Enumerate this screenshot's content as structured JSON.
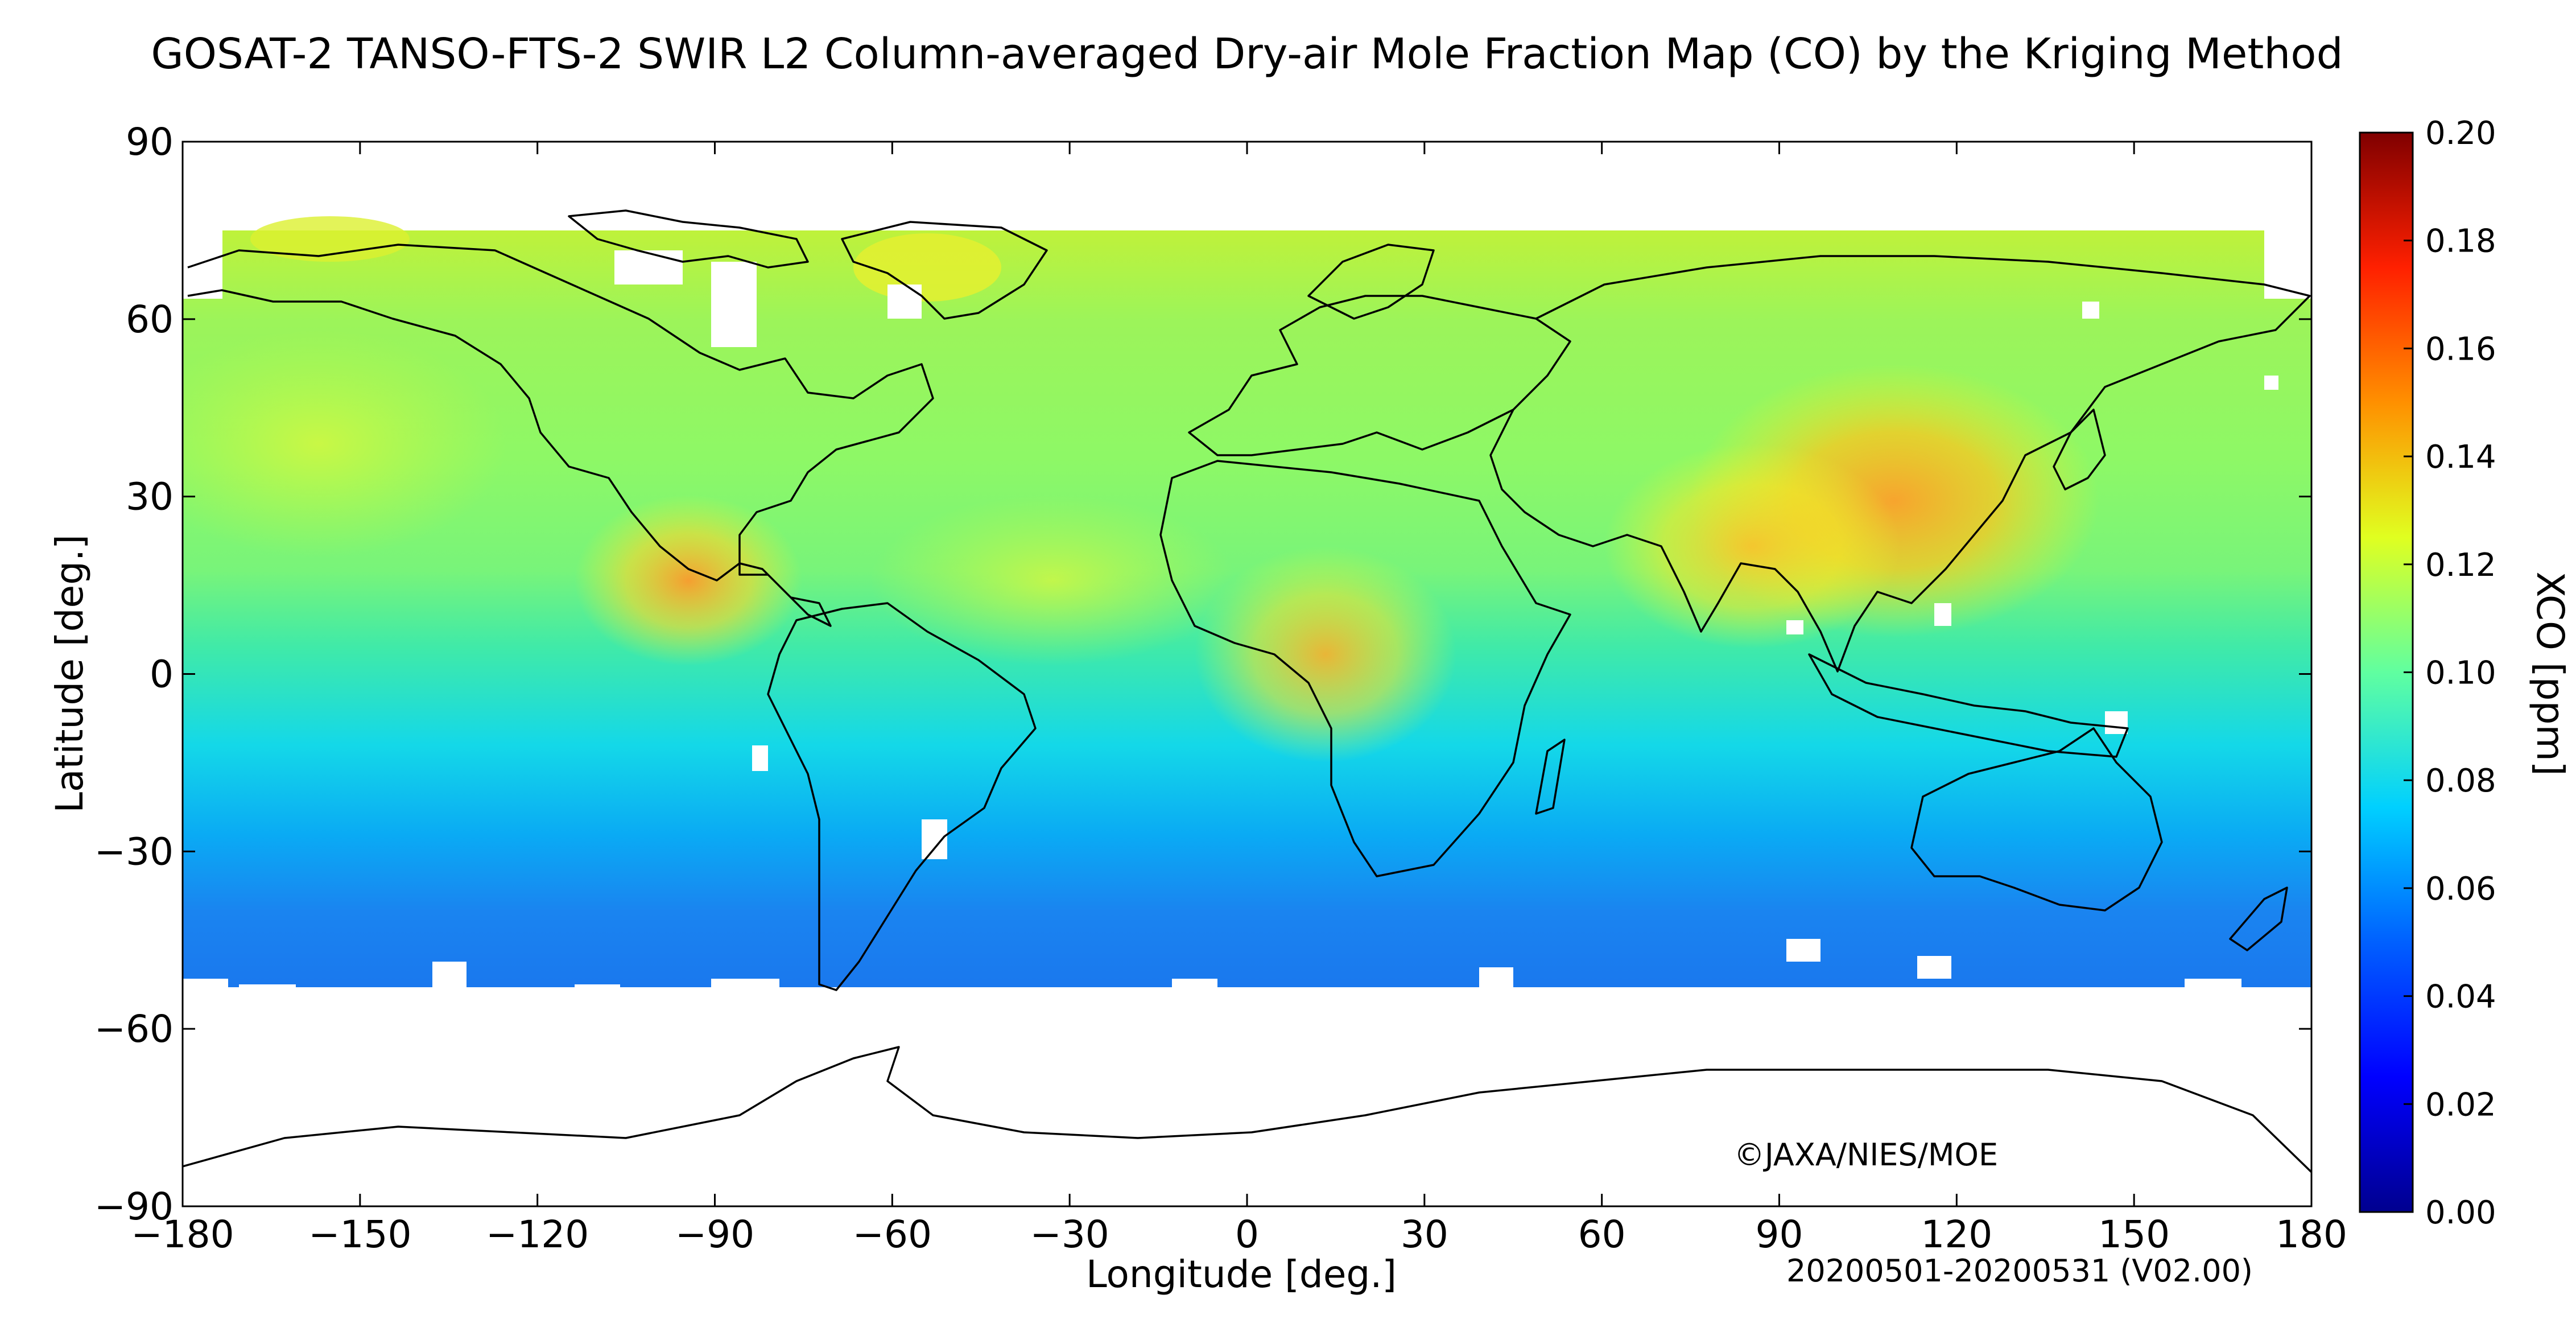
{
  "title": "GOSAT-2 TANSO-FTS-2 SWIR L2 Column-averaged Dry-air Mole Fraction Map (CO) by the Kriging Method",
  "x_axis": {
    "label": "Longitude [deg.]",
    "range": [
      -180,
      180
    ],
    "ticks": [
      -180,
      -150,
      -120,
      -90,
      -60,
      -30,
      0,
      30,
      60,
      90,
      120,
      150,
      180
    ],
    "tick_labels": [
      "−180",
      "−150",
      "−120",
      "−90",
      "−60",
      "−30",
      "0",
      "30",
      "60",
      "90",
      "120",
      "150",
      "180"
    ]
  },
  "y_axis": {
    "label": "Latitude [deg.]",
    "range": [
      -90,
      90
    ],
    "ticks": [
      90,
      60,
      30,
      0,
      -30,
      -60,
      -90
    ],
    "tick_labels": [
      "90",
      "60",
      "30",
      "0",
      "−30",
      "−60",
      "−90"
    ]
  },
  "colorbar": {
    "label": "XCO [ppm]",
    "range": [
      0.0,
      0.2
    ],
    "tick_labels": [
      "0.20",
      "0.18",
      "0.16",
      "0.14",
      "0.12",
      "0.10",
      "0.08",
      "0.06",
      "0.04",
      "0.02",
      "0.00"
    ],
    "colors": [
      "#00008f",
      "#0000ff",
      "#0080ff",
      "#00ffff",
      "#80ff80",
      "#ffff00",
      "#ff8000",
      "#ff0000",
      "#800000"
    ]
  },
  "copyright": "©JAXA/NIES/MOE",
  "date_range": "20200501-20200531 (V02.00)",
  "chart_data": {
    "type": "heatmap",
    "variable": "XCO",
    "unit": "ppm",
    "data_coverage_lat": [
      -55,
      72
    ],
    "value_regions": [
      {
        "region": "northern hemisphere mid-latitudes",
        "xco": 0.1
      },
      {
        "region": "Central America / Mexico",
        "xco": 0.14
      },
      {
        "region": "Central Africa",
        "xco": 0.13
      },
      {
        "region": "East China",
        "xco": 0.145
      },
      {
        "region": "India / South Asia",
        "xco": 0.13
      },
      {
        "region": "Arctic latitudes",
        "xco": 0.11
      },
      {
        "region": "tropics",
        "xco": 0.1
      },
      {
        "region": "southern hemisphere subtropics",
        "xco": 0.07
      },
      {
        "region": "Southern Ocean",
        "xco": 0.05
      }
    ]
  }
}
